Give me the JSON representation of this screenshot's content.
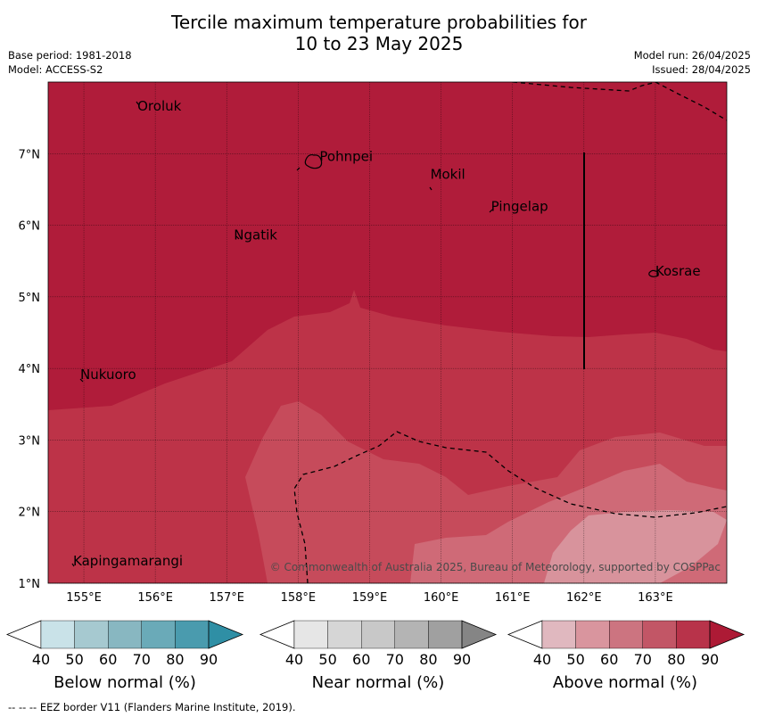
{
  "title": {
    "line1": "Tercile maximum temperature probabilities for",
    "line2": "10 to 23 May 2025"
  },
  "meta": {
    "base_period": "Base period: 1981-2018",
    "model": "Model: ACCESS-S2",
    "model_run": "Model run: 26/04/2025",
    "issued": "Issued: 28/04/2025"
  },
  "map": {
    "lon_range": [
      154.5,
      164.0
    ],
    "lat_range": [
      1.0,
      8.0
    ],
    "lon_ticks": [
      "155°E",
      "156°E",
      "157°E",
      "158°E",
      "159°E",
      "160°E",
      "161°E",
      "162°E",
      "163°E"
    ],
    "lat_ticks": [
      "1°N",
      "2°N",
      "3°N",
      "4°N",
      "5°N",
      "6°N",
      "7°N"
    ],
    "places": [
      {
        "name": "Oroluk",
        "lon": 155.75,
        "lat": 7.6
      },
      {
        "name": "Pohnpei",
        "lon": 158.3,
        "lat": 6.9
      },
      {
        "name": "Mokil",
        "lon": 159.85,
        "lat": 6.65
      },
      {
        "name": "Pingelap",
        "lon": 160.7,
        "lat": 6.2
      },
      {
        "name": "Ngatik",
        "lon": 157.1,
        "lat": 5.8
      },
      {
        "name": "Kosrae",
        "lon": 163.0,
        "lat": 5.3
      },
      {
        "name": "Nukuoro",
        "lon": 154.95,
        "lat": 3.85
      },
      {
        "name": "Kapingamarangi",
        "lon": 154.85,
        "lat": 1.25
      }
    ],
    "copyright": "© Commonwealth of Australia 2025, Bureau of Meteorology, supported by COSPPac",
    "colors": {
      "above_80": "#b01c3a",
      "above_70": "#bd3348",
      "above_60": "#c64b5b",
      "above_50": "#cf6a77",
      "above_40": "#d8939c"
    }
  },
  "colorbars": [
    {
      "name": "below",
      "title": "Below normal (%)",
      "ticks": [
        "40",
        "50",
        "60",
        "70",
        "80",
        "90"
      ],
      "colors": [
        "#ffffff",
        "#c9e2e8",
        "#a6c9d0",
        "#88b7c1",
        "#6aaab8",
        "#4a9bae",
        "#2f8fa5"
      ]
    },
    {
      "name": "near",
      "title": "Near normal (%)",
      "ticks": [
        "40",
        "50",
        "60",
        "70",
        "80",
        "90"
      ],
      "colors": [
        "#ffffff",
        "#e6e6e6",
        "#d6d6d6",
        "#c8c8c8",
        "#b4b4b4",
        "#a0a0a0",
        "#858585"
      ]
    },
    {
      "name": "above",
      "title": "Above normal (%)",
      "ticks": [
        "40",
        "50",
        "60",
        "70",
        "80",
        "90"
      ],
      "colors": [
        "#ffffff",
        "#e0b8bf",
        "#d9959e",
        "#cc7480",
        "#c25666",
        "#b8334a",
        "#ad1a35"
      ]
    }
  ],
  "footer": "--  --  -- EEZ border V11 (Flanders Marine Institute, 2019)."
}
